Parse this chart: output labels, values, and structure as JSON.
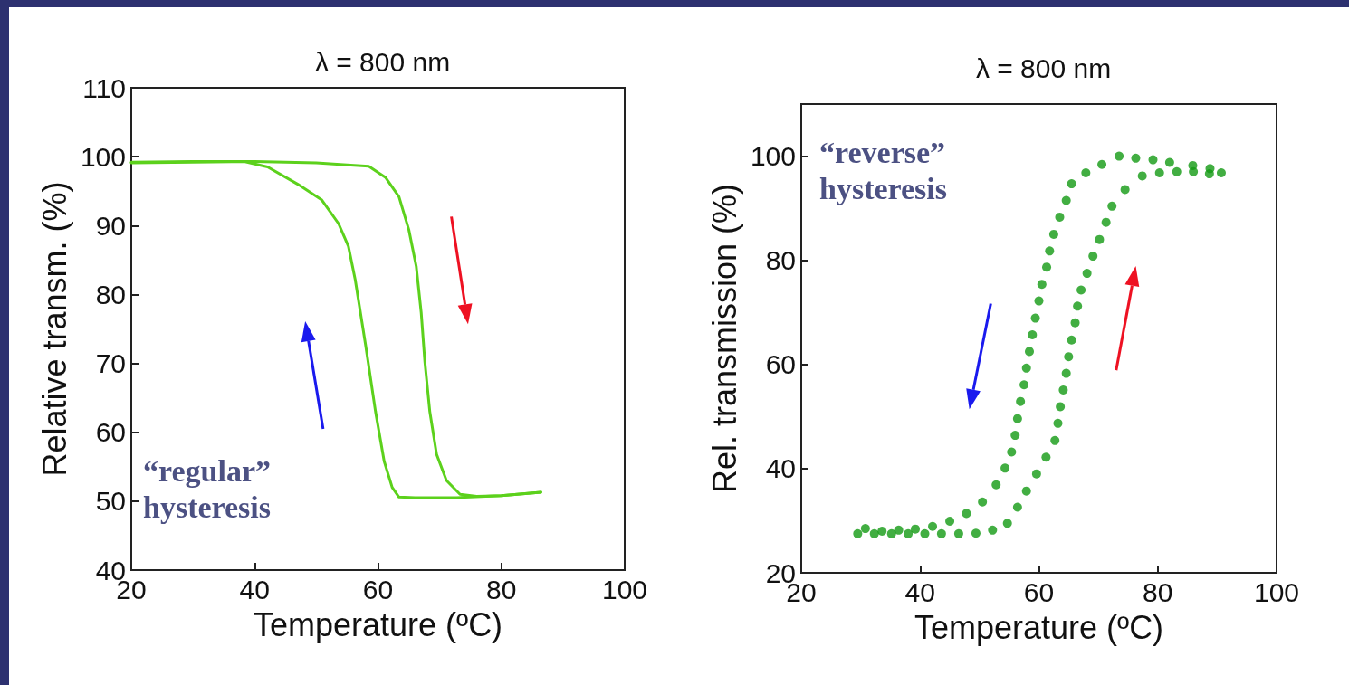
{
  "chart_data": [
    {
      "type": "line",
      "title": "λ = 800 nm",
      "xlabel": "Temperature (ºC)",
      "ylabel": "Relative transm. (%)",
      "xlim": [
        20,
        100
      ],
      "xticks": [
        20,
        40,
        60,
        80,
        100
      ],
      "ylim": [
        40,
        110
      ],
      "yticks": [
        40,
        50,
        60,
        70,
        80,
        90,
        100,
        110
      ],
      "marker": "none",
      "line_style": "solid",
      "grid": false,
      "annotations": [
        "“regular” hysteresis"
      ],
      "series": [
        {
          "color": "#5cd11c",
          "x": [
            20,
            30,
            40,
            50,
            55,
            58.5,
            61.2,
            63.4,
            65,
            66.2,
            67,
            67.6,
            68.4,
            69.5,
            71.1,
            73.3,
            76,
            80,
            86.4
          ],
          "values": [
            99.2,
            99.3,
            99.3,
            99.1,
            98.8,
            98.6,
            97,
            94.2,
            89.4,
            84.1,
            77.4,
            70.2,
            63,
            56.8,
            53,
            51,
            50.7,
            50.8,
            51.3
          ]
        },
        {
          "color": "#5cd11c",
          "x": [
            86.4,
            80,
            72.7,
            66,
            63.4,
            62.3,
            61,
            59.6,
            58,
            56.3,
            55.2,
            53.6,
            50.9,
            47,
            42.1,
            38.3,
            30,
            20
          ],
          "values": [
            51.3,
            50.8,
            50.5,
            50.5,
            50.6,
            52,
            55.8,
            63,
            72.6,
            82.2,
            87,
            90.3,
            93.7,
            96,
            98.5,
            99.3,
            99.2,
            99.1
          ]
        }
      ]
    },
    {
      "type": "scatter",
      "title": "λ = 800 nm",
      "xlabel": "Temperature (ºC)",
      "ylabel": "Rel. transmission (%)",
      "xlim": [
        20,
        100
      ],
      "xticks": [
        20,
        40,
        60,
        80,
        100
      ],
      "ylim": [
        20,
        110
      ],
      "yticks": [
        20,
        40,
        60,
        80,
        100
      ],
      "marker": "circle",
      "grid": false,
      "annotations": [
        "“reverse” hysteresis"
      ],
      "series": [
        {
          "color": "#139a13",
          "x": [
            29.5,
            32.3,
            35.2,
            38.0,
            40.8,
            43.6,
            46.5,
            49.4,
            52.2,
            54.7,
            56.4,
            57.9,
            59.6,
            61.2,
            62.7,
            63.2,
            63.6,
            64.1,
            64.6,
            65.0,
            65.5,
            66.1,
            66.5,
            67.1,
            68.1,
            69.1,
            70.2,
            71.3,
            72.3,
            74.5,
            77.4,
            80.3,
            83.2,
            86.0,
            88.7,
            90.7
          ],
          "values": [
            27.5,
            27.5,
            27.5,
            27.5,
            27.5,
            27.5,
            27.5,
            27.6,
            28.2,
            29.5,
            32.6,
            35.7,
            39.0,
            42.2,
            45.4,
            48.7,
            51.9,
            55.1,
            58.3,
            61.5,
            64.7,
            68.0,
            71.2,
            74.3,
            77.5,
            80.8,
            84.0,
            87.3,
            90.4,
            93.6,
            96.2,
            96.8,
            97.0,
            97.0,
            96.6,
            96.8
          ]
        },
        {
          "color": "#139a13",
          "x": [
            88.8,
            85.9,
            82.0,
            79.2,
            76.3,
            73.5,
            70.6,
            67.9,
            65.5,
            64.6,
            63.5,
            62.5,
            61.8,
            61.3,
            60.5,
            60.0,
            59.4,
            58.9,
            58.4,
            57.9,
            57.5,
            56.9,
            56.4,
            56.0,
            55.4,
            54.3,
            52.8,
            50.5,
            47.8,
            45.0,
            42.1,
            39.2,
            36.4,
            33.6,
            30.8
          ],
          "values": [
            97.6,
            98.2,
            98.8,
            99.3,
            99.6,
            100,
            98.4,
            96.8,
            94.7,
            91.5,
            88.3,
            85.0,
            81.8,
            78.7,
            75.4,
            72.2,
            68.9,
            65.7,
            62.5,
            59.3,
            56.1,
            52.9,
            49.6,
            46.4,
            43.2,
            40.1,
            36.9,
            33.6,
            31.4,
            29.9,
            28.9,
            28.4,
            28.2,
            28.0,
            28.5
          ]
        }
      ]
    }
  ]
}
